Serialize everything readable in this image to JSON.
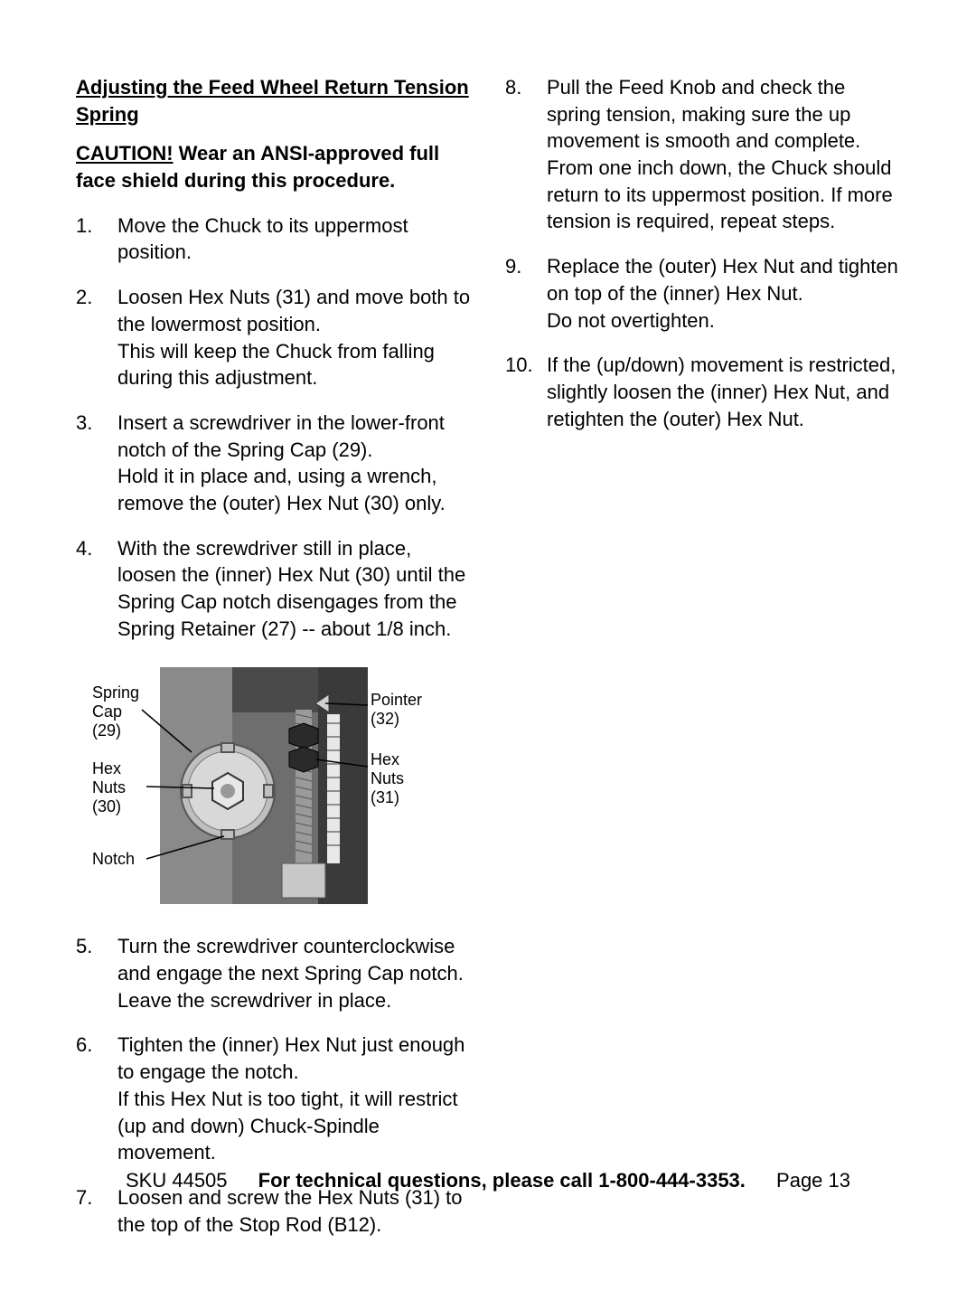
{
  "section_title": "Adjusting the Feed Wheel Return Tension Spring",
  "caution_word": "CAUTION!",
  "caution_text": " Wear an ANSI-approved full face shield during this procedure.",
  "left_steps": [
    {
      "num": "1.",
      "text": "Move the Chuck to its uppermost position."
    },
    {
      "num": "2.",
      "text": "Loosen Hex Nuts (31) and move both to the lowermost position.\nThis will keep the Chuck from falling during this adjustment."
    },
    {
      "num": "3.",
      "text": "Insert a screwdriver in the lower-front notch of the Spring Cap (29).\nHold it in place and, using a wrench, remove the (outer) Hex Nut (30) only."
    },
    {
      "num": "4.",
      "text": "With the screwdriver still in place, loosen the (inner) Hex Nut (30) until the Spring Cap notch disengages from the Spring Retainer (27) -- about 1/8 inch."
    }
  ],
  "left_steps_after": [
    {
      "num": "5.",
      "text": "Turn the screwdriver counterclockwise and engage the next Spring Cap notch. Leave the screwdriver in place."
    },
    {
      "num": "6.",
      "text": "Tighten the (inner) Hex Nut just enough to engage the notch.\nIf this Hex Nut is too tight, it will restrict (up and down) Chuck-Spindle movement."
    },
    {
      "num": "7.",
      "text": "Loosen and screw the Hex Nuts (31) to the top of the Stop Rod (B12)."
    }
  ],
  "right_steps": [
    {
      "num": "8.",
      "text": "Pull the Feed Knob and check the spring tension, making sure the up movement is smooth and complete.\nFrom one inch down, the Chuck should return to its uppermost position. If more tension is required, repeat steps."
    },
    {
      "num": "9.",
      "text": "Replace the (outer) Hex Nut and tighten on top of the (inner) Hex Nut.\nDo not overtighten."
    },
    {
      "num": "10.",
      "text": "If the (up/down) movement is restricted, slightly loosen the (inner) Hex Nut, and retighten the (outer) Hex Nut."
    }
  ],
  "figure": {
    "labels": {
      "spring_cap": "Spring\nCap\n(29)",
      "hex_nuts_30": "Hex\nNuts\n(30)",
      "notch": "Notch",
      "pointer": "Pointer\n(32)",
      "hex_nuts_31": "Hex\nNuts\n(31)"
    },
    "colors": {
      "photo_bg_dark": "#3a3a3a",
      "photo_bg_mid": "#6e6e6e",
      "photo_bg_light": "#b8b8b8",
      "metal_light": "#e8e8e8",
      "metal_mid": "#bfbfbf",
      "metal_dark": "#555555",
      "line": "#000000"
    }
  },
  "footer": {
    "sku": "SKU 44505",
    "msg": "For technical questions, please call 1-800-444-3353.",
    "page": "Page 13"
  }
}
